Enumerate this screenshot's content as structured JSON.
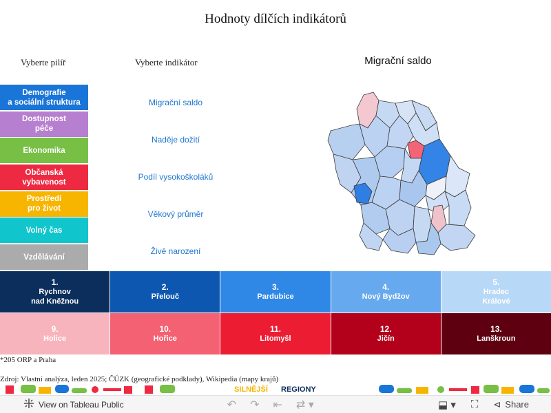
{
  "title": "Hodnoty dílčích indikátorů",
  "pillar_header": "Vyberte pilíř",
  "indicator_header": "Vyberte indikátor",
  "map_title": "Migrační saldo",
  "pillars": [
    {
      "label": "Demografie\na sociální struktura",
      "color": "#1a75d8"
    },
    {
      "label": "Dostupnost\npéče",
      "color": "#b77fcf"
    },
    {
      "label": "Ekonomika",
      "color": "#77bf45"
    },
    {
      "label": "Občanská\nvybavenost",
      "color": "#ee2a43"
    },
    {
      "label": "Prostředí\npro život",
      "color": "#f7b500"
    },
    {
      "label": "Volný čas",
      "color": "#10c5cc"
    },
    {
      "label": "Vzdělávání",
      "color": "#ababab"
    }
  ],
  "indicators": [
    {
      "label": "Migrační saldo"
    },
    {
      "label": "Naděje dožití"
    },
    {
      "label": "Podíl vysokoškoláků"
    },
    {
      "label": "Věkový průměr"
    },
    {
      "label": "Živě narození"
    }
  ],
  "ranks": [
    {
      "num": "1.",
      "name": "Rychnov\nnad Kněžnou",
      "color": "#0b2e5c"
    },
    {
      "num": "2.",
      "name": "Přelouč",
      "color": "#0d57b0"
    },
    {
      "num": "3.",
      "name": "Pardubice",
      "color": "#2f87e6"
    },
    {
      "num": "4.",
      "name": "Nový Bydžov",
      "color": "#66a9ee"
    },
    {
      "num": "5.",
      "name": "Hradec\nKrálové",
      "color": "#b8d8f7"
    },
    {
      "num": "9.",
      "name": "Holice",
      "color": "#f8b4bd"
    },
    {
      "num": "10.",
      "name": "Hořice",
      "color": "#f36172"
    },
    {
      "num": "11.",
      "name": "Litomyšl",
      "color": "#ec1c33"
    },
    {
      "num": "12.",
      "name": "Jičín",
      "color": "#b3001b"
    },
    {
      "num": "13.",
      "name": "Lanškroun",
      "color": "#5e0010"
    }
  ],
  "note": "*205 ORP a Praha",
  "source": "Zdroj: Vlastní analýza, leden 2025; ČÚZK (geografické podklady), Wikipedia (mapy krajů)",
  "brand": {
    "word1": "SILNĚJŠÍ",
    "word2": "REGIONY"
  },
  "toolbar": {
    "view_label": "View on Tableau Public",
    "share_label": "Share"
  }
}
